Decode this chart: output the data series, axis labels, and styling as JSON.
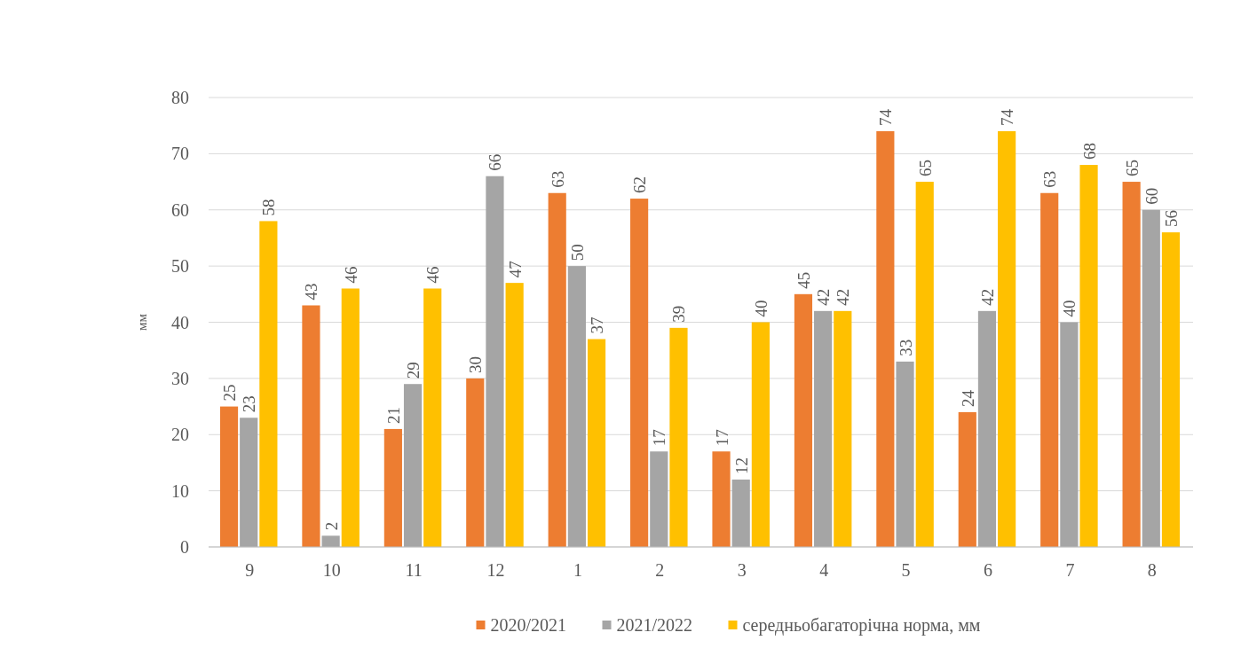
{
  "chart_data": {
    "type": "bar",
    "ylabel": "мм",
    "categories": [
      "9",
      "10",
      "11",
      "12",
      "1",
      "2",
      "3",
      "4",
      "5",
      "6",
      "7",
      "8"
    ],
    "series": [
      {
        "name": "2020/2021",
        "color": "#ed7d31",
        "values": [
          25,
          43,
          21,
          30,
          63,
          62,
          17,
          45,
          74,
          24,
          63,
          65
        ]
      },
      {
        "name": "2021/2022",
        "color": "#a5a5a5",
        "values": [
          23,
          2,
          29,
          66,
          50,
          17,
          12,
          42,
          33,
          42,
          40,
          60
        ]
      },
      {
        "name": "середньобагаторічна норма, мм",
        "color": "#ffc000",
        "values": [
          58,
          46,
          46,
          47,
          37,
          39,
          40,
          42,
          65,
          74,
          68,
          56
        ]
      }
    ],
    "ylim": [
      0,
      80
    ],
    "yticks": [
      0,
      10,
      20,
      30,
      40,
      50,
      60,
      70,
      80
    ],
    "grid": "y",
    "legend": "bottom",
    "data_labels": true
  }
}
